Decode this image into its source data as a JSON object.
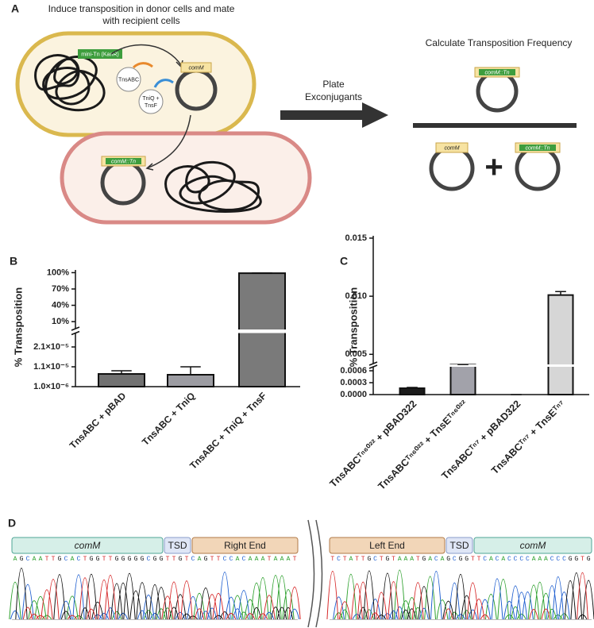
{
  "panel_a": {
    "label": "A",
    "title_lines": [
      "Induce transposition in donor cells and mate",
      "with recipient cells"
    ],
    "mini_tn": "mini-Tn (KanR)",
    "tnsabc": "TnsABC",
    "tniq_tnsf": [
      "TniQ +",
      "TnsF"
    ],
    "donor_target": "comM",
    "recipient_target": "comM::Tn",
    "step": [
      "Plate",
      "Exconjugants"
    ],
    "result_title": "Calculate Transposition Frequency",
    "numerator": "comM::Tn",
    "denominator_left": "comM",
    "plus": "+",
    "denominator_right": "comM::Tn"
  },
  "chart_data": [
    {
      "type": "bar",
      "panel_label": "B",
      "ylabel": "% Transposition",
      "categories": [
        "TnsABC + pBAD",
        "TnsABC + TniQ",
        "TnsABC + TniQ + TnsF"
      ],
      "values": [
        7.4e-06,
        7e-06,
        99
      ],
      "errors": [
        1.6e-06,
        4e-06,
        0.4
      ],
      "colors": [
        "#717171",
        "#9c9ca2",
        "#7a7a7a"
      ],
      "axis_break": true,
      "ylim": [
        1e-06,
        2.8e-05
      ],
      "yticks": [
        {
          "value": 1e-06,
          "label": "1.0×10⁻⁶"
        },
        {
          "value": 1.1e-05,
          "label": "1.1×10⁻⁵"
        },
        {
          "value": 2.1e-05,
          "label": "2.1×10⁻⁵"
        }
      ],
      "ylim_upper": [
        -3,
        105
      ],
      "yticks_upper": [
        {
          "value": 10,
          "label": "10%"
        },
        {
          "value": 40,
          "label": "40%"
        },
        {
          "value": 70,
          "label": "70%"
        },
        {
          "value": 100,
          "label": "100%"
        }
      ]
    },
    {
      "type": "bar",
      "panel_label": "C",
      "ylabel": "% Transposition",
      "categories": [
        "TnsABCᵀⁿ⁶⁰²² + pBAD322",
        "TnsABCᵀⁿ⁶⁰²² + TnsEᵀⁿ⁶⁰²²",
        "TnsABCᵀⁿ⁷ + pBAD322",
        "TnsABCᵀⁿ⁷ + TnsEᵀⁿ⁷"
      ],
      "values": [
        0.00016,
        0.003,
        0,
        0.0101
      ],
      "errors": [
        2e-05,
        0.0002,
        0,
        0.0003
      ],
      "colors": [
        "#1c1c1c",
        "#a2a2aa",
        "#c8c8c8",
        "#d6d6d6"
      ],
      "axis_break": true,
      "ylim": [
        0,
        0.0007
      ],
      "yticks": [
        {
          "value": 0,
          "label": "0.0000"
        },
        0.0003,
        0.0006
      ],
      "ylim_upper": [
        0.0042,
        0.0152
      ],
      "yticks_upper": [
        0.005,
        {
          "value": 0.01,
          "label": "0.010"
        },
        0.015
      ]
    }
  ],
  "panel_d": {
    "label": "D",
    "left_segments": [
      "comM",
      "TSD",
      "Right End"
    ],
    "right_segments": [
      "Left End",
      "TSD",
      "comM"
    ],
    "left_sequence": "AGCAATTGCACTGGTTGGGGGCGGTTGTCAGTTCCACAAATAAAT",
    "right_sequence": "TCTATTGCTGTAAATGACAGCGGTTCACACCCCAAACCCGGTG"
  }
}
